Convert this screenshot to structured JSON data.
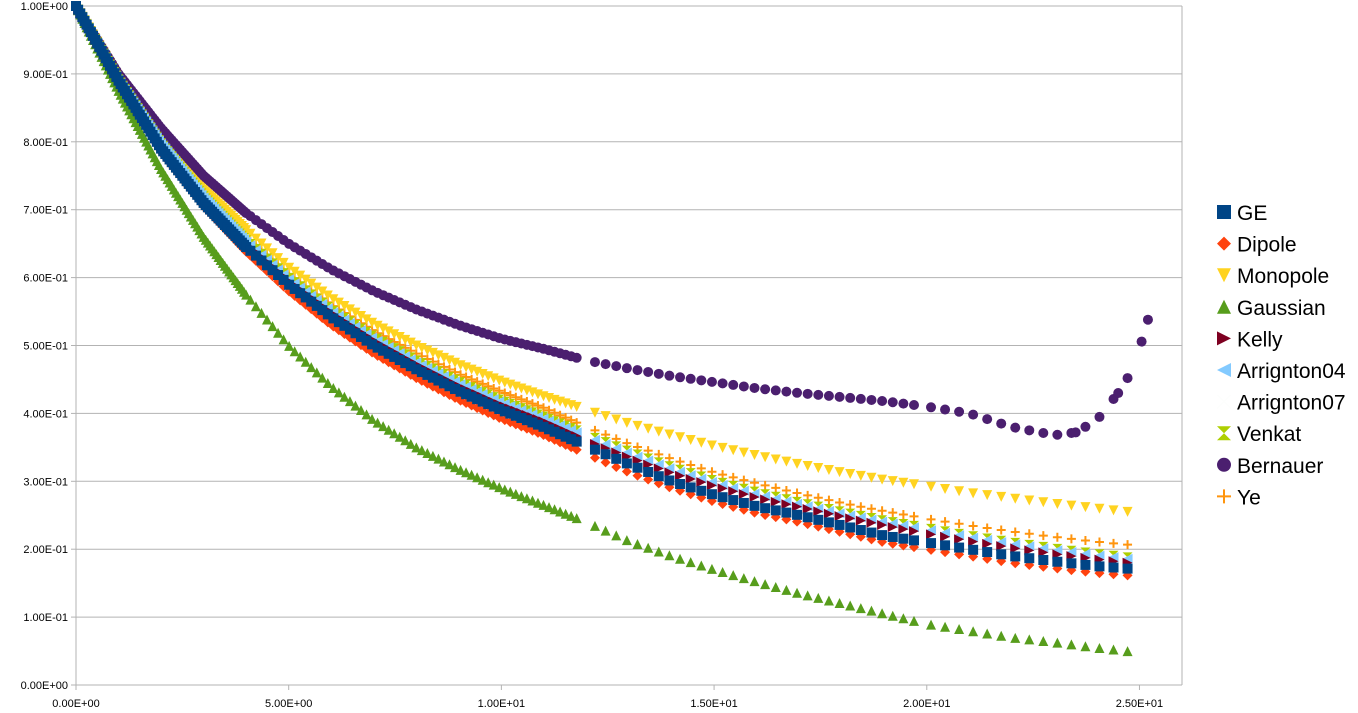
{
  "chart_data": {
    "type": "scatter",
    "title": "",
    "xlabel": "",
    "ylabel": "",
    "xlim": [
      0,
      26
    ],
    "ylim": [
      0,
      1
    ],
    "x_ticks": [
      0,
      5,
      10,
      15,
      20,
      25
    ],
    "x_tick_labels": [
      "0.00E+00",
      "5.00E+00",
      "1.00E+01",
      "1.50E+01",
      "2.00E+01",
      "2.50E+01"
    ],
    "y_ticks": [
      0,
      0.1,
      0.2,
      0.3,
      0.4,
      0.5,
      0.6,
      0.7,
      0.8,
      0.9,
      1.0
    ],
    "y_tick_labels": [
      "0.00E+00",
      "1.00E-01",
      "2.00E-01",
      "3.00E-01",
      "4.00E-01",
      "5.00E-01",
      "6.00E-01",
      "7.00E-01",
      "8.00E-01",
      "9.00E-01",
      "1.00E+00"
    ],
    "grid": "horizontal",
    "legend_position": "right",
    "series": [
      {
        "name": "GE",
        "marker": "square",
        "color": "#004586",
        "points": [
          [
            0,
            1.0
          ],
          [
            1,
            0.89
          ],
          [
            2,
            0.79
          ],
          [
            3,
            0.71
          ],
          [
            4,
            0.645
          ],
          [
            5,
            0.59
          ],
          [
            6,
            0.542
          ],
          [
            7,
            0.5
          ],
          [
            8,
            0.465
          ],
          [
            9,
            0.433
          ],
          [
            10,
            0.405
          ],
          [
            11,
            0.38
          ],
          [
            12,
            0.352
          ],
          [
            13,
            0.325
          ],
          [
            14,
            0.3
          ],
          [
            15,
            0.28
          ],
          [
            16,
            0.263
          ],
          [
            17,
            0.25
          ],
          [
            18,
            0.235
          ],
          [
            19,
            0.22
          ],
          [
            20,
            0.21
          ],
          [
            21,
            0.2
          ],
          [
            22,
            0.19
          ],
          [
            23,
            0.182
          ],
          [
            24,
            0.175
          ],
          [
            25,
            0.17
          ]
        ]
      },
      {
        "name": "Dipole",
        "marker": "diamond",
        "color": "#ff420e",
        "points": [
          [
            0,
            1.0
          ],
          [
            1,
            0.887
          ],
          [
            2,
            0.785
          ],
          [
            3,
            0.705
          ],
          [
            4,
            0.638
          ],
          [
            5,
            0.58
          ],
          [
            6,
            0.53
          ],
          [
            7,
            0.488
          ],
          [
            8,
            0.452
          ],
          [
            9,
            0.42
          ],
          [
            10,
            0.392
          ],
          [
            11,
            0.368
          ],
          [
            12,
            0.34
          ],
          [
            13,
            0.313
          ],
          [
            14,
            0.29
          ],
          [
            15,
            0.27
          ],
          [
            16,
            0.253
          ],
          [
            17,
            0.24
          ],
          [
            18,
            0.225
          ],
          [
            19,
            0.21
          ],
          [
            20,
            0.2
          ],
          [
            21,
            0.19
          ],
          [
            22,
            0.18
          ],
          [
            23,
            0.172
          ],
          [
            24,
            0.165
          ],
          [
            25,
            0.16
          ]
        ]
      },
      {
        "name": "Monopole",
        "marker": "triangle-down",
        "color": "#ffd320",
        "points": [
          [
            0,
            1.0
          ],
          [
            1,
            0.895
          ],
          [
            2,
            0.805
          ],
          [
            3,
            0.73
          ],
          [
            4,
            0.67
          ],
          [
            5,
            0.615
          ],
          [
            6,
            0.57
          ],
          [
            7,
            0.532
          ],
          [
            8,
            0.5
          ],
          [
            9,
            0.472
          ],
          [
            10,
            0.447
          ],
          [
            11,
            0.425
          ],
          [
            12,
            0.405
          ],
          [
            13,
            0.385
          ],
          [
            14,
            0.368
          ],
          [
            15,
            0.352
          ],
          [
            16,
            0.338
          ],
          [
            17,
            0.325
          ],
          [
            18,
            0.313
          ],
          [
            19,
            0.302
          ],
          [
            20,
            0.293
          ],
          [
            21,
            0.283
          ],
          [
            22,
            0.275
          ],
          [
            23,
            0.267
          ],
          [
            24,
            0.26
          ],
          [
            25,
            0.253
          ]
        ]
      },
      {
        "name": "Gaussian",
        "marker": "triangle-up",
        "color": "#579d1c",
        "points": [
          [
            0,
            1.0
          ],
          [
            1,
            0.875
          ],
          [
            2,
            0.76
          ],
          [
            3,
            0.66
          ],
          [
            4,
            0.575
          ],
          [
            5,
            0.5
          ],
          [
            6,
            0.44
          ],
          [
            7,
            0.39
          ],
          [
            8,
            0.35
          ],
          [
            9,
            0.318
          ],
          [
            10,
            0.29
          ],
          [
            11,
            0.265
          ],
          [
            12,
            0.24
          ],
          [
            13,
            0.212
          ],
          [
            14,
            0.19
          ],
          [
            15,
            0.17
          ],
          [
            16,
            0.152
          ],
          [
            17,
            0.135
          ],
          [
            18,
            0.12
          ],
          [
            19,
            0.105
          ],
          [
            20,
            0.09
          ],
          [
            21,
            0.08
          ],
          [
            22,
            0.07
          ],
          [
            23,
            0.063
          ],
          [
            24,
            0.055
          ],
          [
            25,
            0.048
          ]
        ]
      },
      {
        "name": "Kelly",
        "marker": "triangle-right",
        "color": "#7e0021",
        "points": [
          [
            0,
            1.0
          ],
          [
            1,
            0.89
          ],
          [
            2,
            0.795
          ],
          [
            3,
            0.715
          ],
          [
            4,
            0.65
          ],
          [
            5,
            0.595
          ],
          [
            6,
            0.548
          ],
          [
            7,
            0.507
          ],
          [
            8,
            0.472
          ],
          [
            9,
            0.44
          ],
          [
            10,
            0.412
          ],
          [
            11,
            0.388
          ],
          [
            12,
            0.36
          ],
          [
            13,
            0.335
          ],
          [
            14,
            0.312
          ],
          [
            15,
            0.293
          ],
          [
            16,
            0.276
          ],
          [
            17,
            0.262
          ],
          [
            18,
            0.248
          ],
          [
            19,
            0.235
          ],
          [
            20,
            0.223
          ],
          [
            21,
            0.212
          ],
          [
            22,
            0.202
          ],
          [
            23,
            0.193
          ],
          [
            24,
            0.185
          ],
          [
            25,
            0.178
          ]
        ]
      },
      {
        "name": "Arrignton04",
        "marker": "triangle-left",
        "color": "#83caff",
        "points": [
          [
            0,
            1.0
          ],
          [
            1,
            0.891
          ],
          [
            2,
            0.797
          ],
          [
            3,
            0.718
          ],
          [
            4,
            0.653
          ],
          [
            5,
            0.598
          ],
          [
            6,
            0.551
          ],
          [
            7,
            0.51
          ],
          [
            8,
            0.475
          ],
          [
            9,
            0.444
          ],
          [
            10,
            0.416
          ],
          [
            11,
            0.392
          ],
          [
            12,
            0.366
          ],
          [
            13,
            0.341
          ],
          [
            14,
            0.318
          ],
          [
            15,
            0.298
          ],
          [
            16,
            0.281
          ],
          [
            17,
            0.266
          ],
          [
            18,
            0.252
          ],
          [
            19,
            0.24
          ],
          [
            20,
            0.229
          ],
          [
            21,
            0.218
          ],
          [
            22,
            0.208
          ],
          [
            23,
            0.199
          ],
          [
            24,
            0.191
          ],
          [
            25,
            0.184
          ]
        ]
      },
      {
        "name": "Arrignton07",
        "marker": "bowtie",
        "color": "#314004",
        "points": [
          [
            0,
            1.0
          ],
          [
            1,
            0.893
          ],
          [
            2,
            0.8
          ],
          [
            3,
            0.722
          ],
          [
            4,
            0.658
          ],
          [
            5,
            0.603
          ],
          [
            6,
            0.556
          ],
          [
            7,
            0.516
          ],
          [
            8,
            0.481
          ],
          [
            9,
            0.45
          ],
          [
            10,
            0.422
          ],
          [
            11,
            0.398
          ],
          [
            12,
            0.372
          ],
          [
            13,
            0.347
          ],
          [
            14,
            0.325
          ],
          [
            15,
            0.305
          ],
          [
            16,
            0.288
          ],
          [
            17,
            0.272
          ],
          [
            18,
            0.258
          ],
          [
            19,
            0.245
          ],
          [
            20,
            0.232
          ],
          [
            21,
            0.222
          ],
          [
            22,
            0.212
          ],
          [
            23,
            0.203
          ],
          [
            24,
            0.195
          ],
          [
            25,
            0.188
          ]
        ]
      },
      {
        "name": "Venkat",
        "marker": "hourglass",
        "color": "#aecf00",
        "points": [
          [
            0,
            1.0
          ],
          [
            1,
            0.892
          ],
          [
            2,
            0.798
          ],
          [
            3,
            0.72
          ],
          [
            4,
            0.655
          ],
          [
            5,
            0.6
          ],
          [
            6,
            0.553
          ],
          [
            7,
            0.513
          ],
          [
            8,
            0.478
          ],
          [
            9,
            0.447
          ],
          [
            10,
            0.419
          ],
          [
            11,
            0.395
          ],
          [
            12,
            0.369
          ],
          [
            13,
            0.344
          ],
          [
            14,
            0.321
          ],
          [
            15,
            0.301
          ],
          [
            16,
            0.284
          ],
          [
            17,
            0.269
          ],
          [
            18,
            0.255
          ],
          [
            19,
            0.242
          ],
          [
            20,
            0.231
          ],
          [
            21,
            0.22
          ],
          [
            22,
            0.21
          ],
          [
            23,
            0.201
          ],
          [
            24,
            0.193
          ],
          [
            25,
            0.186
          ]
        ]
      },
      {
        "name": "Bernauer",
        "marker": "circle",
        "color": "#4b1f6f",
        "points": [
          [
            0,
            1.0
          ],
          [
            1,
            0.9
          ],
          [
            2,
            0.82
          ],
          [
            3,
            0.75
          ],
          [
            4,
            0.695
          ],
          [
            5,
            0.65
          ],
          [
            6,
            0.612
          ],
          [
            7,
            0.58
          ],
          [
            8,
            0.553
          ],
          [
            9,
            0.53
          ],
          [
            10,
            0.51
          ],
          [
            11,
            0.495
          ],
          [
            12,
            0.478
          ],
          [
            13,
            0.466
          ],
          [
            14,
            0.455
          ],
          [
            15,
            0.446
          ],
          [
            16,
            0.437
          ],
          [
            17,
            0.43
          ],
          [
            18,
            0.424
          ],
          [
            19,
            0.418
          ],
          [
            20,
            0.41
          ],
          [
            21,
            0.4
          ],
          [
            22,
            0.38
          ],
          [
            23,
            0.368
          ],
          [
            23.5,
            0.372
          ],
          [
            24,
            0.39
          ],
          [
            24.5,
            0.43
          ],
          [
            24.8,
            0.46
          ],
          [
            25,
            0.495
          ],
          [
            25.2,
            0.538
          ]
        ]
      },
      {
        "name": "Ye",
        "marker": "plus",
        "color": "#ff950e",
        "points": [
          [
            0,
            1.0
          ],
          [
            1,
            0.892
          ],
          [
            2,
            0.8
          ],
          [
            3,
            0.722
          ],
          [
            4,
            0.658
          ],
          [
            5,
            0.605
          ],
          [
            6,
            0.56
          ],
          [
            7,
            0.521
          ],
          [
            8,
            0.488
          ],
          [
            9,
            0.458
          ],
          [
            10,
            0.432
          ],
          [
            11,
            0.408
          ],
          [
            12,
            0.38
          ],
          [
            13,
            0.355
          ],
          [
            14,
            0.333
          ],
          [
            15,
            0.313
          ],
          [
            16,
            0.297
          ],
          [
            17,
            0.282
          ],
          [
            18,
            0.268
          ],
          [
            19,
            0.256
          ],
          [
            20,
            0.245
          ],
          [
            21,
            0.235
          ],
          [
            22,
            0.226
          ],
          [
            23,
            0.218
          ],
          [
            24,
            0.211
          ],
          [
            25,
            0.205
          ]
        ]
      }
    ]
  }
}
